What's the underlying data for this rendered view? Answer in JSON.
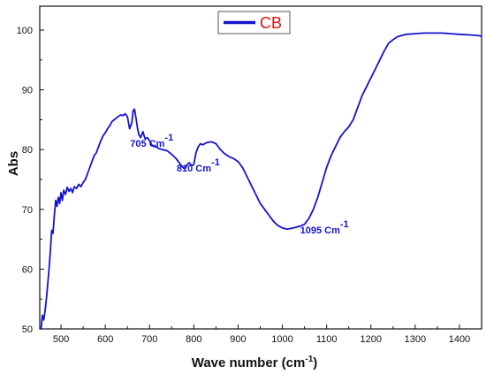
{
  "colors": {
    "series": "#1414cc",
    "legend_text": "#dd1111",
    "annotation": "#1414cc",
    "axis": "#111111"
  },
  "chart_data": {
    "type": "line",
    "title": "",
    "xlabel": "Wave number (cm",
    "xlabel_sup": "-1",
    "xlabel_tail": ")",
    "ylabel": "Abs",
    "xlim": [
      452,
      1450
    ],
    "ylim": [
      50,
      104
    ],
    "xticks": [
      500,
      600,
      700,
      800,
      900,
      1000,
      1100,
      1200,
      1300,
      1400
    ],
    "yticks": [
      50,
      60,
      70,
      80,
      90,
      100
    ],
    "grid": false,
    "legend": {
      "placement": "top-center",
      "entries": [
        "CB"
      ]
    },
    "annotations": [
      {
        "text": "705 Cm",
        "sup": "-1",
        "x": 705,
        "y": 80.5
      },
      {
        "text": "810 Cm",
        "sup": "-1",
        "x": 810,
        "y": 76.3
      },
      {
        "text": "1095 Cm",
        "sup": "-1",
        "x": 1095,
        "y": 66
      }
    ],
    "series": [
      {
        "name": "CB",
        "x": [
          455,
          458,
          461,
          464,
          467,
          470,
          473,
          476,
          479,
          482,
          485,
          488,
          491,
          494,
          497,
          500,
          503,
          506,
          510,
          514,
          518,
          522,
          526,
          530,
          535,
          540,
          545,
          550,
          555,
          560,
          565,
          570,
          575,
          580,
          585,
          590,
          595,
          600,
          605,
          610,
          615,
          620,
          625,
          630,
          635,
          640,
          645,
          650,
          655,
          660,
          663,
          666,
          670,
          673,
          676,
          680,
          685,
          690,
          695,
          700,
          705,
          710,
          715,
          720,
          730,
          740,
          750,
          760,
          770,
          775,
          780,
          785,
          790,
          795,
          800,
          805,
          810,
          815,
          820,
          830,
          840,
          850,
          860,
          870,
          880,
          890,
          900,
          910,
          920,
          930,
          940,
          950,
          960,
          970,
          980,
          990,
          1000,
          1010,
          1020,
          1030,
          1040,
          1050,
          1060,
          1070,
          1080,
          1090,
          1100,
          1110,
          1120,
          1130,
          1140,
          1150,
          1160,
          1170,
          1180,
          1190,
          1200,
          1210,
          1220,
          1230,
          1240,
          1250,
          1260,
          1270,
          1280,
          1300,
          1320,
          1340,
          1360,
          1380,
          1400,
          1420,
          1440,
          1450
        ],
        "y": [
          50,
          52.3,
          51.5,
          53,
          55,
          57.5,
          60,
          63,
          66.5,
          66,
          69,
          71.5,
          70.5,
          72,
          71,
          72.8,
          71.5,
          73.2,
          72.5,
          73.7,
          73,
          73.5,
          72.8,
          73.8,
          73.5,
          74.2,
          73.8,
          74.5,
          75,
          76,
          77,
          78,
          79,
          79.5,
          80.5,
          81.5,
          82.3,
          82.8,
          83.5,
          84,
          84.7,
          85,
          85.3,
          85.6,
          85.8,
          85.7,
          86,
          85.5,
          83.5,
          84.5,
          86.5,
          86.8,
          85,
          83.5,
          82.5,
          82,
          83,
          81.8,
          82,
          81.5,
          80.8,
          80.5,
          80.5,
          80.2,
          80,
          79.8,
          79.2,
          78.5,
          77.5,
          77,
          76.8,
          77.5,
          77.8,
          77.3,
          77.5,
          79.5,
          80.5,
          81,
          80.8,
          81.2,
          81.3,
          81,
          80,
          79.3,
          78.8,
          78.5,
          78,
          77,
          75.5,
          74,
          72.5,
          71,
          70,
          69,
          68,
          67.3,
          66.9,
          66.7,
          66.8,
          67,
          67.2,
          67.5,
          68.5,
          70,
          72,
          74.5,
          77,
          79,
          80.5,
          82,
          83,
          83.8,
          85,
          87,
          89,
          90.5,
          92,
          93.5,
          95,
          96.5,
          97.8,
          98.4,
          98.9,
          99.1,
          99.3,
          99.4,
          99.5,
          99.5,
          99.5,
          99.4,
          99.3,
          99.2,
          99.1,
          99
        ]
      }
    ]
  }
}
